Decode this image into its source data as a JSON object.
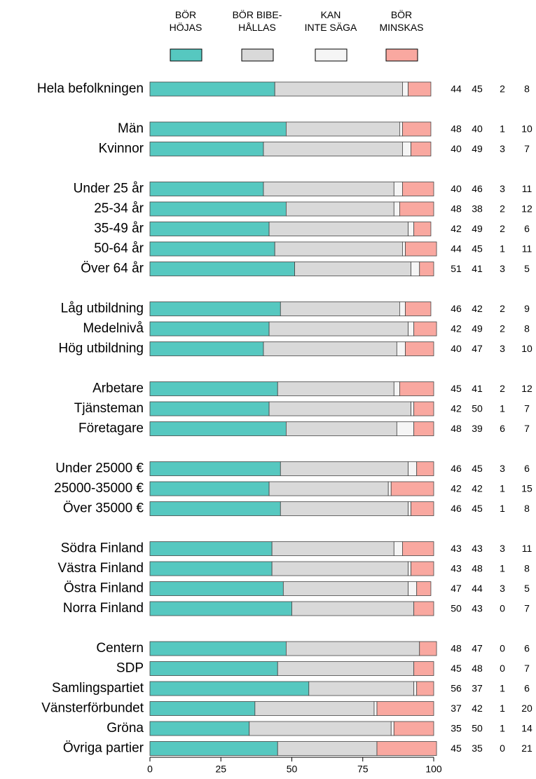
{
  "chart_data": {
    "type": "stacked_barh",
    "categories": [
      "Hela befolkningen",
      null,
      "Män",
      "Kvinnor",
      null,
      "Under 25 år",
      "25-34 år",
      "35-49 år",
      "50-64 år",
      "Över 64 år",
      null,
      "Låg utbildning",
      "Medelnivå",
      "Hög utbildning",
      null,
      "Arbetare",
      "Tjänsteman",
      "Företagare",
      null,
      "Under 25000 €",
      "25000-35000 €",
      "Över 35000 €",
      null,
      "Södra Finland",
      "Västra Finland",
      "Östra Finland",
      "Norra Finland",
      null,
      "Centern",
      "SDP",
      "Samlingspartiet",
      "Vänsterförbundet",
      "Gröna",
      "Övriga partier"
    ],
    "series": [
      {
        "name": "BÖR\nHÖJAS",
        "color": "#56c8c0",
        "values": [
          44,
          null,
          48,
          40,
          null,
          40,
          48,
          42,
          44,
          51,
          null,
          46,
          42,
          40,
          null,
          45,
          42,
          48,
          null,
          46,
          42,
          46,
          null,
          43,
          43,
          47,
          50,
          null,
          48,
          45,
          56,
          37,
          35,
          45
        ]
      },
      {
        "name": "BÖR BIBE-\nHÅLLAS",
        "color": "#d9d9d9",
        "values": [
          45,
          null,
          40,
          49,
          null,
          46,
          38,
          49,
          45,
          41,
          null,
          42,
          49,
          47,
          null,
          41,
          50,
          39,
          null,
          45,
          42,
          45,
          null,
          43,
          48,
          44,
          43,
          null,
          47,
          48,
          37,
          42,
          50,
          35
        ]
      },
      {
        "name": "KAN\nINTE SÄGA",
        "color": "#f5f5f5",
        "values": [
          2,
          null,
          1,
          3,
          null,
          3,
          2,
          2,
          1,
          3,
          null,
          2,
          2,
          3,
          null,
          2,
          1,
          6,
          null,
          3,
          1,
          1,
          null,
          3,
          1,
          3,
          0,
          null,
          0,
          0,
          1,
          1,
          1,
          0
        ]
      },
      {
        "name": "BÖR\nMINSKAS",
        "color": "#f9a8a0",
        "values": [
          8,
          null,
          10,
          7,
          null,
          11,
          12,
          6,
          11,
          5,
          null,
          9,
          8,
          10,
          null,
          12,
          7,
          7,
          null,
          6,
          15,
          8,
          null,
          11,
          8,
          5,
          7,
          null,
          6,
          7,
          6,
          20,
          14,
          21
        ]
      }
    ],
    "xlim": [
      0,
      100
    ],
    "xticks": [
      0,
      25,
      50,
      75,
      100
    ]
  }
}
